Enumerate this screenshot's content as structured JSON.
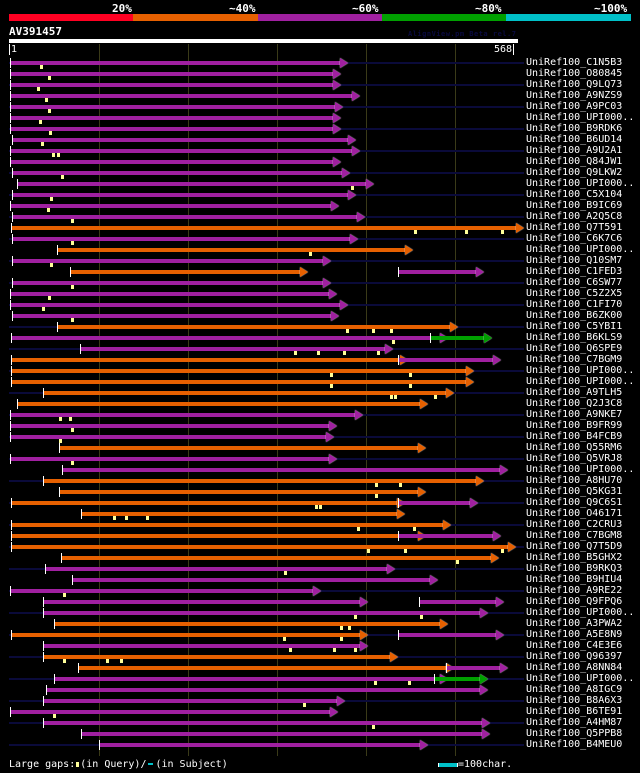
{
  "legend": {
    "labels": [
      "20%",
      "~40%",
      "~60%",
      "~80%",
      "~100%"
    ],
    "colors": [
      "#ff0022",
      "#e66000",
      "#a020a0",
      "#00a000",
      "#00c0c8"
    ]
  },
  "query": {
    "name": "AV391457",
    "credit": "AlignView.pm Beta rel.7",
    "start": "1",
    "end": "568"
  },
  "colors": {
    "magenta": "#a020a0",
    "orange": "#e66000",
    "green": "#00a000",
    "navy": "#0a0a3a",
    "gap_marker": "#ffff99",
    "scale": "#00c0c8"
  },
  "hits": [
    {
      "label": "UniRef100_C1N5B3",
      "color": "magenta",
      "start": 10,
      "end": 340,
      "navy": true,
      "gaps": [
        40
      ]
    },
    {
      "label": "UniRef100_O80845",
      "color": "magenta",
      "start": 10,
      "end": 333,
      "navy": false,
      "gaps": [
        48
      ]
    },
    {
      "label": "UniRef100_Q9LQ73",
      "color": "magenta",
      "start": 10,
      "end": 333,
      "navy": true,
      "gaps": [
        37
      ]
    },
    {
      "label": "UniRef100_A9NZS9",
      "color": "magenta",
      "start": 10,
      "end": 352,
      "navy": false,
      "gaps": [
        45
      ]
    },
    {
      "label": "UniRef100_A9PC03",
      "color": "magenta",
      "start": 10,
      "end": 335,
      "navy": true,
      "gaps": [
        48
      ]
    },
    {
      "label": "UniRef100_UPI000..",
      "color": "magenta",
      "start": 10,
      "end": 333,
      "navy": false,
      "gaps": [
        39
      ]
    },
    {
      "label": "UniRef100_B9RDK6",
      "color": "magenta",
      "start": 10,
      "end": 333,
      "navy": true,
      "gaps": [
        49
      ]
    },
    {
      "label": "UniRef100_B6UD14",
      "color": "magenta",
      "start": 12,
      "end": 348,
      "navy": false,
      "gaps": [
        41
      ]
    },
    {
      "label": "UniRef100_A9U2A1",
      "color": "magenta",
      "start": 10,
      "end": 352,
      "navy": true,
      "gaps": [
        52,
        57
      ]
    },
    {
      "label": "UniRef100_Q84JW1",
      "color": "magenta",
      "start": 10,
      "end": 333,
      "navy": false,
      "gaps": []
    },
    {
      "label": "UniRef100_Q9LKW2",
      "color": "magenta",
      "start": 12,
      "end": 342,
      "navy": true,
      "gaps": [
        61
      ]
    },
    {
      "label": "UniRef100_UPI000..",
      "color": "magenta",
      "start": 17,
      "end": 366,
      "navy": false,
      "gaps": [
        351
      ]
    },
    {
      "label": "UniRef100_C5X104",
      "color": "magenta",
      "start": 12,
      "end": 348,
      "navy": true,
      "gaps": [
        50
      ]
    },
    {
      "label": "UniRef100_B9IC69",
      "color": "magenta",
      "start": 10,
      "end": 331,
      "navy": false,
      "gaps": [
        47
      ]
    },
    {
      "label": "UniRef100_A2Q5C8",
      "color": "magenta",
      "start": 12,
      "end": 357,
      "navy": true,
      "gaps": [
        71
      ]
    },
    {
      "label": "UniRef100_Q7T591",
      "color": "orange",
      "start": 11,
      "end": 516,
      "navy": false,
      "gaps": [
        414,
        465,
        501
      ]
    },
    {
      "label": "UniRef100_C6K7C6",
      "color": "magenta",
      "start": 12,
      "end": 350,
      "navy": true,
      "gaps": [
        71
      ]
    },
    {
      "label": "UniRef100_UPI000..",
      "color": "orange",
      "start": 57,
      "end": 405,
      "navy": false,
      "gaps": [
        309
      ]
    },
    {
      "label": "UniRef100_Q10SM7",
      "color": "magenta",
      "start": 12,
      "end": 323,
      "navy": true,
      "gaps": [
        50
      ]
    },
    {
      "label": "UniRef100_C1FED3",
      "color": "orange",
      "start": 70,
      "end": 300,
      "navy": false,
      "gaps": [],
      "extra": {
        "color": "magenta",
        "start": 398,
        "end": 476
      }
    },
    {
      "label": "UniRef100_C6SW77",
      "color": "magenta",
      "start": 12,
      "end": 323,
      "navy": true,
      "gaps": [
        71
      ]
    },
    {
      "label": "UniRef100_C5Z2X5",
      "color": "magenta",
      "start": 10,
      "end": 329,
      "navy": false,
      "gaps": [
        48
      ]
    },
    {
      "label": "UniRef100_C1FI70",
      "color": "magenta",
      "start": 10,
      "end": 340,
      "navy": true,
      "gaps": [
        42
      ]
    },
    {
      "label": "UniRef100_B6ZK00",
      "color": "magenta",
      "start": 12,
      "end": 331,
      "navy": false,
      "gaps": [
        71
      ]
    },
    {
      "label": "UniRef100_C5YBI1",
      "color": "orange",
      "start": 57,
      "end": 450,
      "navy": true,
      "gaps": [
        346,
        372,
        390
      ]
    },
    {
      "label": "UniRef100_B6KLS9",
      "color": "magenta",
      "start": 11,
      "end": 440,
      "navy": false,
      "gaps": [
        392
      ],
      "extra": {
        "color": "green",
        "start": 430,
        "end": 484
      }
    },
    {
      "label": "UniRef100_Q6SPE9",
      "color": "magenta",
      "start": 80,
      "end": 385,
      "navy": true,
      "gaps": [
        294,
        317,
        343,
        377
      ]
    },
    {
      "label": "UniRef100_C7BGM9",
      "color": "orange",
      "start": 11,
      "end": 400,
      "navy": false,
      "gaps": [],
      "extra": {
        "color": "magenta",
        "start": 398,
        "end": 493
      }
    },
    {
      "label": "UniRef100_UPI000..",
      "color": "orange",
      "start": 11,
      "end": 466,
      "navy": true,
      "gaps": [
        330,
        409
      ]
    },
    {
      "label": "UniRef100_UPI000..",
      "color": "orange",
      "start": 11,
      "end": 466,
      "navy": false,
      "gaps": [
        330,
        409
      ]
    },
    {
      "label": "UniRef100_A9TLH5",
      "color": "orange",
      "start": 43,
      "end": 446,
      "navy": true,
      "gaps": [
        390,
        394,
        434
      ]
    },
    {
      "label": "UniRef100_Q2J3C8",
      "color": "orange",
      "start": 17,
      "end": 420,
      "navy": false,
      "gaps": []
    },
    {
      "label": "UniRef100_A9NKE7",
      "color": "magenta",
      "start": 10,
      "end": 355,
      "navy": true,
      "gaps": [
        59,
        69
      ]
    },
    {
      "label": "UniRef100_B9FR99",
      "color": "magenta",
      "start": 10,
      "end": 329,
      "navy": false,
      "gaps": [
        71
      ]
    },
    {
      "label": "UniRef100_B4FCB9",
      "color": "magenta",
      "start": 10,
      "end": 326,
      "navy": true,
      "gaps": [
        59
      ]
    },
    {
      "label": "UniRef100_Q55RM6",
      "color": "orange",
      "start": 59,
      "end": 418,
      "navy": false,
      "gaps": []
    },
    {
      "label": "UniRef100_Q5VRJ8",
      "color": "magenta",
      "start": 10,
      "end": 329,
      "navy": true,
      "gaps": [
        71
      ]
    },
    {
      "label": "UniRef100_UPI000..",
      "color": "magenta",
      "start": 62,
      "end": 500,
      "navy": false,
      "gaps": []
    },
    {
      "label": "UniRef100_A8HU70",
      "color": "orange",
      "start": 43,
      "end": 476,
      "navy": true,
      "gaps": [
        375,
        399
      ]
    },
    {
      "label": "UniRef100_Q5KG31",
      "color": "orange",
      "start": 59,
      "end": 418,
      "navy": false,
      "gaps": [
        375
      ]
    },
    {
      "label": "UniRef100_Q9C6S1",
      "color": "orange",
      "start": 11,
      "end": 397,
      "navy": true,
      "gaps": [
        315,
        319
      ],
      "extra": {
        "color": "magenta",
        "start": 398,
        "end": 470
      }
    },
    {
      "label": "UniRef100_O46171",
      "color": "orange",
      "start": 81,
      "end": 397,
      "navy": false,
      "gaps": [
        113,
        125,
        146
      ]
    },
    {
      "label": "UniRef100_C2CRU3",
      "color": "orange",
      "start": 11,
      "end": 443,
      "navy": true,
      "gaps": [
        357,
        413
      ]
    },
    {
      "label": "UniRef100_C7BGM8",
      "color": "orange",
      "start": 11,
      "end": 418,
      "navy": false,
      "gaps": [],
      "extra": {
        "color": "magenta",
        "start": 398,
        "end": 493
      }
    },
    {
      "label": "UniRef100_Q7T5D9",
      "color": "orange",
      "start": 11,
      "end": 508,
      "navy": true,
      "gaps": [
        367,
        404,
        501
      ]
    },
    {
      "label": "UniRef100_B5GHX2",
      "color": "orange",
      "start": 61,
      "end": 491,
      "navy": false,
      "gaps": [
        456
      ]
    },
    {
      "label": "UniRef100_B9RKQ3",
      "color": "magenta",
      "start": 45,
      "end": 387,
      "navy": true,
      "gaps": [
        284
      ]
    },
    {
      "label": "UniRef100_B9HIU4",
      "color": "magenta",
      "start": 72,
      "end": 430,
      "navy": false,
      "gaps": []
    },
    {
      "label": "UniRef100_A9RE22",
      "color": "magenta",
      "start": 10,
      "end": 313,
      "navy": true,
      "gaps": [
        63
      ]
    },
    {
      "label": "UniRef100_Q9FPQ6",
      "color": "magenta",
      "start": 43,
      "end": 360,
      "navy": false,
      "gaps": [],
      "extra": {
        "color": "magenta",
        "start": 419,
        "end": 496
      }
    },
    {
      "label": "UniRef100_UPI000..",
      "color": "magenta",
      "start": 43,
      "end": 480,
      "navy": true,
      "gaps": [
        354,
        420
      ]
    },
    {
      "label": "UniRef100_A3PWA2",
      "color": "orange",
      "start": 54,
      "end": 440,
      "navy": false,
      "gaps": [
        340,
        348
      ]
    },
    {
      "label": "UniRef100_A5E8N9",
      "color": "orange",
      "start": 11,
      "end": 360,
      "navy": true,
      "gaps": [
        283,
        340
      ],
      "extra": {
        "color": "magenta",
        "start": 398,
        "end": 496
      }
    },
    {
      "label": "UniRef100_C4E3E6",
      "color": "magenta",
      "start": 43,
      "end": 360,
      "navy": false,
      "gaps": [
        289,
        333,
        354
      ]
    },
    {
      "label": "UniRef100_Q96397",
      "color": "orange",
      "start": 43,
      "end": 390,
      "navy": true,
      "gaps": [
        63,
        106,
        120
      ]
    },
    {
      "label": "UniRef100_A8NN84",
      "color": "orange",
      "start": 78,
      "end": 446,
      "navy": false,
      "gaps": [],
      "extra": {
        "color": "magenta",
        "start": 446,
        "end": 500
      }
    },
    {
      "label": "UniRef100_UPI000..",
      "color": "magenta",
      "start": 54,
      "end": 440,
      "navy": true,
      "gaps": [
        374,
        408
      ],
      "extra": {
        "color": "green",
        "start": 434,
        "end": 480
      }
    },
    {
      "label": "UniRef100_A8IGC9",
      "color": "magenta",
      "start": 46,
      "end": 480,
      "navy": false,
      "gaps": []
    },
    {
      "label": "UniRef100_B8A6X3",
      "color": "magenta",
      "start": 43,
      "end": 337,
      "navy": true,
      "gaps": [
        303
      ]
    },
    {
      "label": "UniRef100_B6TE91",
      "color": "magenta",
      "start": 10,
      "end": 330,
      "navy": false,
      "gaps": [
        53
      ]
    },
    {
      "label": "UniRef100_A4HM87",
      "color": "magenta",
      "start": 43,
      "end": 482,
      "navy": true,
      "gaps": [
        372
      ]
    },
    {
      "label": "UniRef100_Q5PPB8",
      "color": "magenta",
      "start": 81,
      "end": 482,
      "navy": false,
      "gaps": []
    },
    {
      "label": "UniRef100_B4MEU0",
      "color": "magenta",
      "start": 99,
      "end": 420,
      "navy": true,
      "gaps": []
    }
  ],
  "footer": {
    "gaps_prefix": "Large gaps:",
    "gaps_query": "(in Query)/",
    "gaps_subject": "(in Subject)",
    "scale_label": "=100char."
  }
}
